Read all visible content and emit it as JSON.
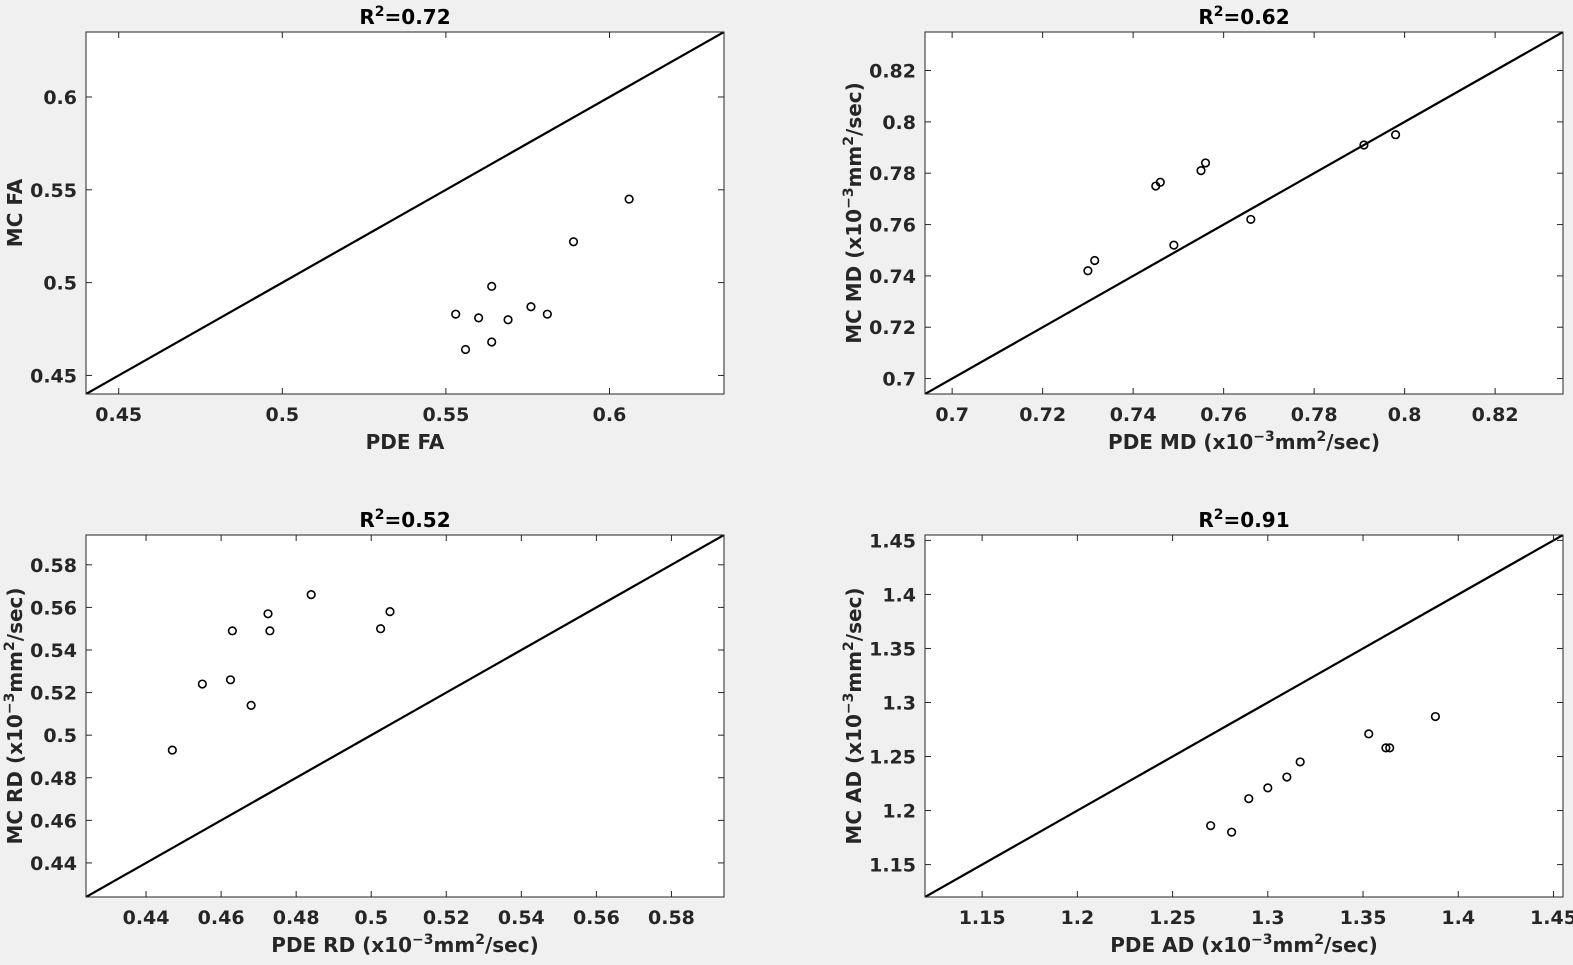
{
  "figure": {
    "background": "#f0f0f0",
    "axes_background": "#ffffff",
    "line_color": "#000000",
    "marker_color": "#000000"
  },
  "chart_data": [
    {
      "type": "scatter",
      "name": "fa",
      "title": "R²=0.72",
      "title_parts": [
        "R",
        "2",
        "=0.72"
      ],
      "xlabel": "PDE FA",
      "ylabel": "MC FA",
      "xlim": [
        0.44,
        0.635
      ],
      "ylim": [
        0.44,
        0.635
      ],
      "xticks": [
        0.45,
        0.5,
        0.55,
        0.6
      ],
      "yticks": [
        0.45,
        0.5,
        0.55,
        0.6
      ],
      "xticklabels": [
        "0.45",
        "0.5",
        "0.55",
        "0.6"
      ],
      "yticklabels": [
        "0.45",
        "0.5",
        "0.55",
        "0.6"
      ],
      "identity_line": true,
      "points": [
        [
          0.553,
          0.483
        ],
        [
          0.556,
          0.464
        ],
        [
          0.56,
          0.481
        ],
        [
          0.564,
          0.498
        ],
        [
          0.564,
          0.468
        ],
        [
          0.569,
          0.48
        ],
        [
          0.576,
          0.487
        ],
        [
          0.581,
          0.483
        ],
        [
          0.589,
          0.522
        ],
        [
          0.606,
          0.545
        ]
      ]
    },
    {
      "type": "scatter",
      "name": "md",
      "title": "R²=0.62",
      "title_parts": [
        "R",
        "2",
        "=0.62"
      ],
      "xlabel": "PDE MD (x10⁻³mm²/sec)",
      "ylabel": "MC MD (x10⁻³mm²/sec)",
      "xlabel_parts": [
        "PDE MD (x10",
        "−3",
        "mm",
        "2",
        "/sec)"
      ],
      "ylabel_parts": [
        "MC MD (x10",
        "−3",
        "mm",
        "2",
        "/sec)"
      ],
      "xlim": [
        0.694,
        0.835
      ],
      "ylim": [
        0.694,
        0.835
      ],
      "xticks": [
        0.7,
        0.72,
        0.74,
        0.76,
        0.78,
        0.8,
        0.82
      ],
      "yticks": [
        0.7,
        0.72,
        0.74,
        0.76,
        0.78,
        0.8,
        0.82
      ],
      "xticklabels": [
        "0.7",
        "0.72",
        "0.74",
        "0.76",
        "0.78",
        "0.8",
        "0.82"
      ],
      "yticklabels": [
        "0.7",
        "0.72",
        "0.74",
        "0.76",
        "0.78",
        "0.8",
        "0.82"
      ],
      "identity_line": true,
      "points": [
        [
          0.73,
          0.742
        ],
        [
          0.7315,
          0.746
        ],
        [
          0.745,
          0.775
        ],
        [
          0.746,
          0.7765
        ],
        [
          0.749,
          0.752
        ],
        [
          0.755,
          0.781
        ],
        [
          0.756,
          0.784
        ],
        [
          0.766,
          0.762
        ],
        [
          0.791,
          0.791
        ],
        [
          0.798,
          0.795
        ]
      ]
    },
    {
      "type": "scatter",
      "name": "rd",
      "title": "R²=0.52",
      "title_parts": [
        "R",
        "2",
        "=0.52"
      ],
      "xlabel": "PDE RD (x10⁻³mm²/sec)",
      "ylabel": "MC RD (x10⁻³mm²/sec)",
      "xlabel_parts": [
        "PDE RD (x10",
        "−3",
        "mm",
        "2",
        "/sec)"
      ],
      "ylabel_parts": [
        "MC RD (x10",
        "−3",
        "mm",
        "2",
        "/sec)"
      ],
      "xlim": [
        0.424,
        0.594
      ],
      "ylim": [
        0.424,
        0.594
      ],
      "xticks": [
        0.44,
        0.46,
        0.48,
        0.5,
        0.52,
        0.54,
        0.56,
        0.58
      ],
      "yticks": [
        0.44,
        0.46,
        0.48,
        0.5,
        0.52,
        0.54,
        0.56,
        0.58
      ],
      "xticklabels": [
        "0.44",
        "0.46",
        "0.48",
        "0.5",
        "0.52",
        "0.54",
        "0.56",
        "0.58"
      ],
      "yticklabels": [
        "0.44",
        "0.46",
        "0.48",
        "0.5",
        "0.52",
        "0.54",
        "0.56",
        "0.58"
      ],
      "identity_line": true,
      "points": [
        [
          0.447,
          0.493
        ],
        [
          0.455,
          0.524
        ],
        [
          0.4625,
          0.526
        ],
        [
          0.463,
          0.549
        ],
        [
          0.468,
          0.514
        ],
        [
          0.4725,
          0.557
        ],
        [
          0.473,
          0.549
        ],
        [
          0.484,
          0.566
        ],
        [
          0.5025,
          0.55
        ],
        [
          0.505,
          0.558
        ]
      ]
    },
    {
      "type": "scatter",
      "name": "ad",
      "title": "R²=0.91",
      "title_parts": [
        "R",
        "2",
        "=0.91"
      ],
      "xlabel": "PDE AD (x10⁻³mm²/sec)",
      "ylabel": "MC AD (x10⁻³mm²/sec)",
      "xlabel_parts": [
        "PDE AD (x10",
        "−3",
        "mm",
        "2",
        "/sec)"
      ],
      "ylabel_parts": [
        "MC AD (x10",
        "−3",
        "mm",
        "2",
        "/sec)"
      ],
      "xlim": [
        1.12,
        1.455
      ],
      "ylim": [
        1.12,
        1.455
      ],
      "xticks": [
        1.15,
        1.2,
        1.25,
        1.3,
        1.35,
        1.4,
        1.45
      ],
      "yticks": [
        1.15,
        1.2,
        1.25,
        1.3,
        1.35,
        1.4,
        1.45
      ],
      "xticklabels": [
        "1.15",
        "1.2",
        "1.25",
        "1.3",
        "1.35",
        "1.4",
        "1.45"
      ],
      "yticklabels": [
        "1.15",
        "1.2",
        "1.25",
        "1.3",
        "1.35",
        "1.4",
        "1.45"
      ],
      "identity_line": true,
      "points": [
        [
          1.27,
          1.186
        ],
        [
          1.281,
          1.18
        ],
        [
          1.29,
          1.211
        ],
        [
          1.3,
          1.221
        ],
        [
          1.31,
          1.231
        ],
        [
          1.317,
          1.245
        ],
        [
          1.353,
          1.271
        ],
        [
          1.362,
          1.258
        ],
        [
          1.364,
          1.258
        ],
        [
          1.388,
          1.287
        ]
      ]
    }
  ]
}
